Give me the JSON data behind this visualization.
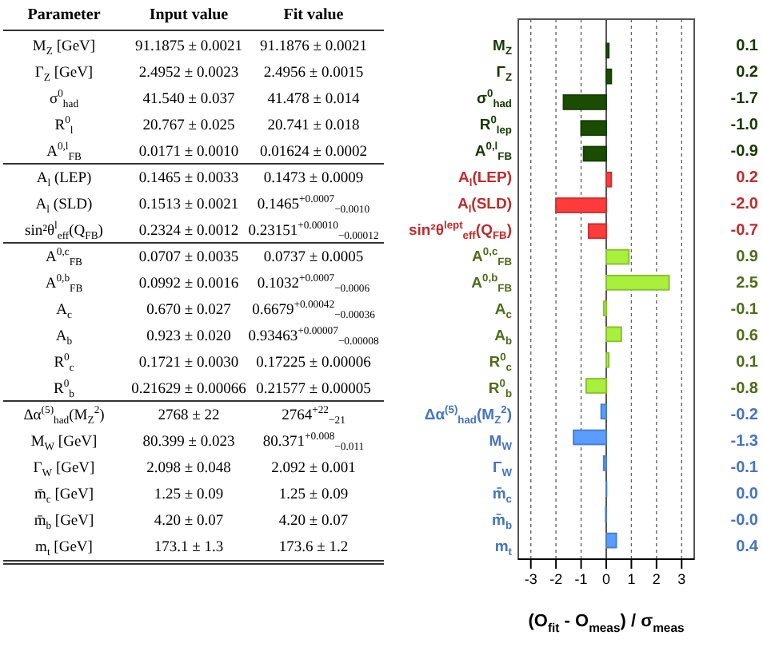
{
  "chart_data": [
    {
      "type": "other",
      "categories": [
        "Parameter",
        "Input value",
        "Fit value"
      ],
      "y_categories": [
        "M$_{Z}$ [GeV]",
        "Γ$_{Z}$ [GeV]",
        "σ$^{0}$$_{had}$",
        "R$^{0}$$_{l}$",
        "A$^{0,l}$$_{FB}$",
        "A$_{l}$ (LEP)",
        "A$_{l}$ (SLD)",
        "sin²θ$^{l}$$_{eff}$(Q$_{FB}$)",
        "A$^{0,c}$$_{FB}$",
        "A$^{0,b}$$_{FB}$",
        "A$_{c}$",
        "A$_{b}$",
        "R$^{0}$$_{c}$",
        "R$^{0}$$_{b}$",
        "Δα$^{(5)}$$_{had}$(M$_{Z}$$^{2}$)",
        "M$_{W}$ [GeV]",
        "Γ$_{W}$ [GeV]",
        "m̄$_{c}$ [GeV]",
        "m̄$_{b}$ [GeV]",
        "m$_{t}$ [GeV]"
      ],
      "cell_labels": [
        [
          "91.1875 ± 0.0021",
          "91.1876 ± 0.0021"
        ],
        [
          "2.4952 ± 0.0023",
          "2.4956 ± 0.0015"
        ],
        [
          "41.540 ± 0.037",
          "41.478 ± 0.014"
        ],
        [
          "20.767 ± 0.025",
          "20.741 ± 0.018"
        ],
        [
          "0.0171 ± 0.0010",
          "0.01624 ± 0.0002"
        ],
        [
          "0.1465 ± 0.0033",
          "0.1473 ± 0.0009"
        ],
        [
          "0.1513 ± 0.0021",
          "0.1465$^{+0.0007}$$_{−0.0010}$"
        ],
        [
          "0.2324 ± 0.0012",
          "0.23151$^{+0.00010}$$_{−0.00012}$"
        ],
        [
          "0.0707 ± 0.0035",
          "0.0737 ± 0.0005"
        ],
        [
          "0.0992 ± 0.0016",
          "0.1032$^{+0.0007}$$_{−0.0006}$"
        ],
        [
          "0.670 ± 0.027",
          "0.6679$^{+0.00042}$$_{−0.00036}$"
        ],
        [
          "0.923 ± 0.020",
          "0.93463$^{+0.00007}$$_{−0.00008}$"
        ],
        [
          "0.1721 ± 0.0030",
          "0.17225 ± 0.00006"
        ],
        [
          "0.21629 ± 0.00066",
          "0.21577 ± 0.00005"
        ],
        [
          "2768 ± 22",
          "2764$^{+22}$$_{−21}$"
        ],
        [
          "80.399 ± 0.023",
          "80.371$^{+0.008}$$_{−0.011}$"
        ],
        [
          "2.098 ± 0.048",
          "2.092 ± 0.001"
        ],
        [
          "1.25 ± 0.09",
          "1.25 ± 0.09"
        ],
        [
          "4.20 ± 0.07",
          "4.20 ± 0.07"
        ],
        [
          "173.1 ± 1.3",
          "173.6 ± 1.2"
        ]
      ]
    },
    {
      "type": "bar",
      "orientation": "horizontal",
      "categories": [
        "M$_{Z}$",
        "Γ$_{Z}$",
        "σ$^{0}$$_{had}$",
        "R$^{0}$$_{lep}$",
        "A$^{0,l}$$_{FB}$",
        "A$_{l}$(LEP)",
        "A$_{l}$(SLD)",
        "sin²θ$^{lept}$$_{eff}$(Q$_{FB}$)",
        "A$^{0,c}$$_{FB}$",
        "A$^{0,b}$$_{FB}$",
        "A$_{c}$",
        "A$_{b}$",
        "R$^{0}$$_{c}$",
        "R$^{0}$$_{b}$",
        "Δα$^{(5)}$$_{had}$(M$_{Z}$$^{2}$)",
        "M$_{W}$",
        "Γ$_{W}$",
        "m̄$_{c}$",
        "m̄$_{b}$",
        "m$_{t}$"
      ],
      "values": [
        0.1,
        0.2,
        -1.7,
        -1.0,
        -0.9,
        0.2,
        -2.0,
        -0.7,
        0.9,
        2.5,
        -0.1,
        0.6,
        0.1,
        -0.8,
        -0.2,
        -1.3,
        -0.1,
        0.01,
        -0.02,
        0.4
      ],
      "value_labels": [
        "0.1",
        "0.2",
        "-1.7",
        "-1.0",
        "-0.9",
        "0.2",
        "-2.0",
        "-0.7",
        "0.9",
        "2.5",
        "-0.1",
        "0.6",
        "0.1",
        "-0.8",
        "-0.2",
        "-1.3",
        "-0.1",
        "0.0",
        "-0.0",
        "0.4"
      ],
      "colors": [
        "#1a4d00",
        "#1a4d00",
        "#1a4d00",
        "#1a4d00",
        "#1a4d00",
        "#ff3b3b",
        "#ff3b3b",
        "#ff3b3b",
        "#a8f03c",
        "#a8f03c",
        "#a8f03c",
        "#a8f03c",
        "#a8f03c",
        "#a8f03c",
        "#5a9cff",
        "#5a9cff",
        "#5a9cff",
        "#5a9cff",
        "#5a9cff",
        "#5a9cff"
      ],
      "xlabel": "(O$_{fit}$ - O$_{meas}$) / σ$_{meas}$",
      "xlim": [
        -3.5,
        3.5
      ],
      "xticks": [
        -3,
        -2,
        -1,
        0,
        1,
        2,
        3
      ],
      "grid": "x",
      "ref_lines": [
        {
          "axis": "x",
          "value": 0,
          "color": "#555555"
        }
      ]
    }
  ]
}
